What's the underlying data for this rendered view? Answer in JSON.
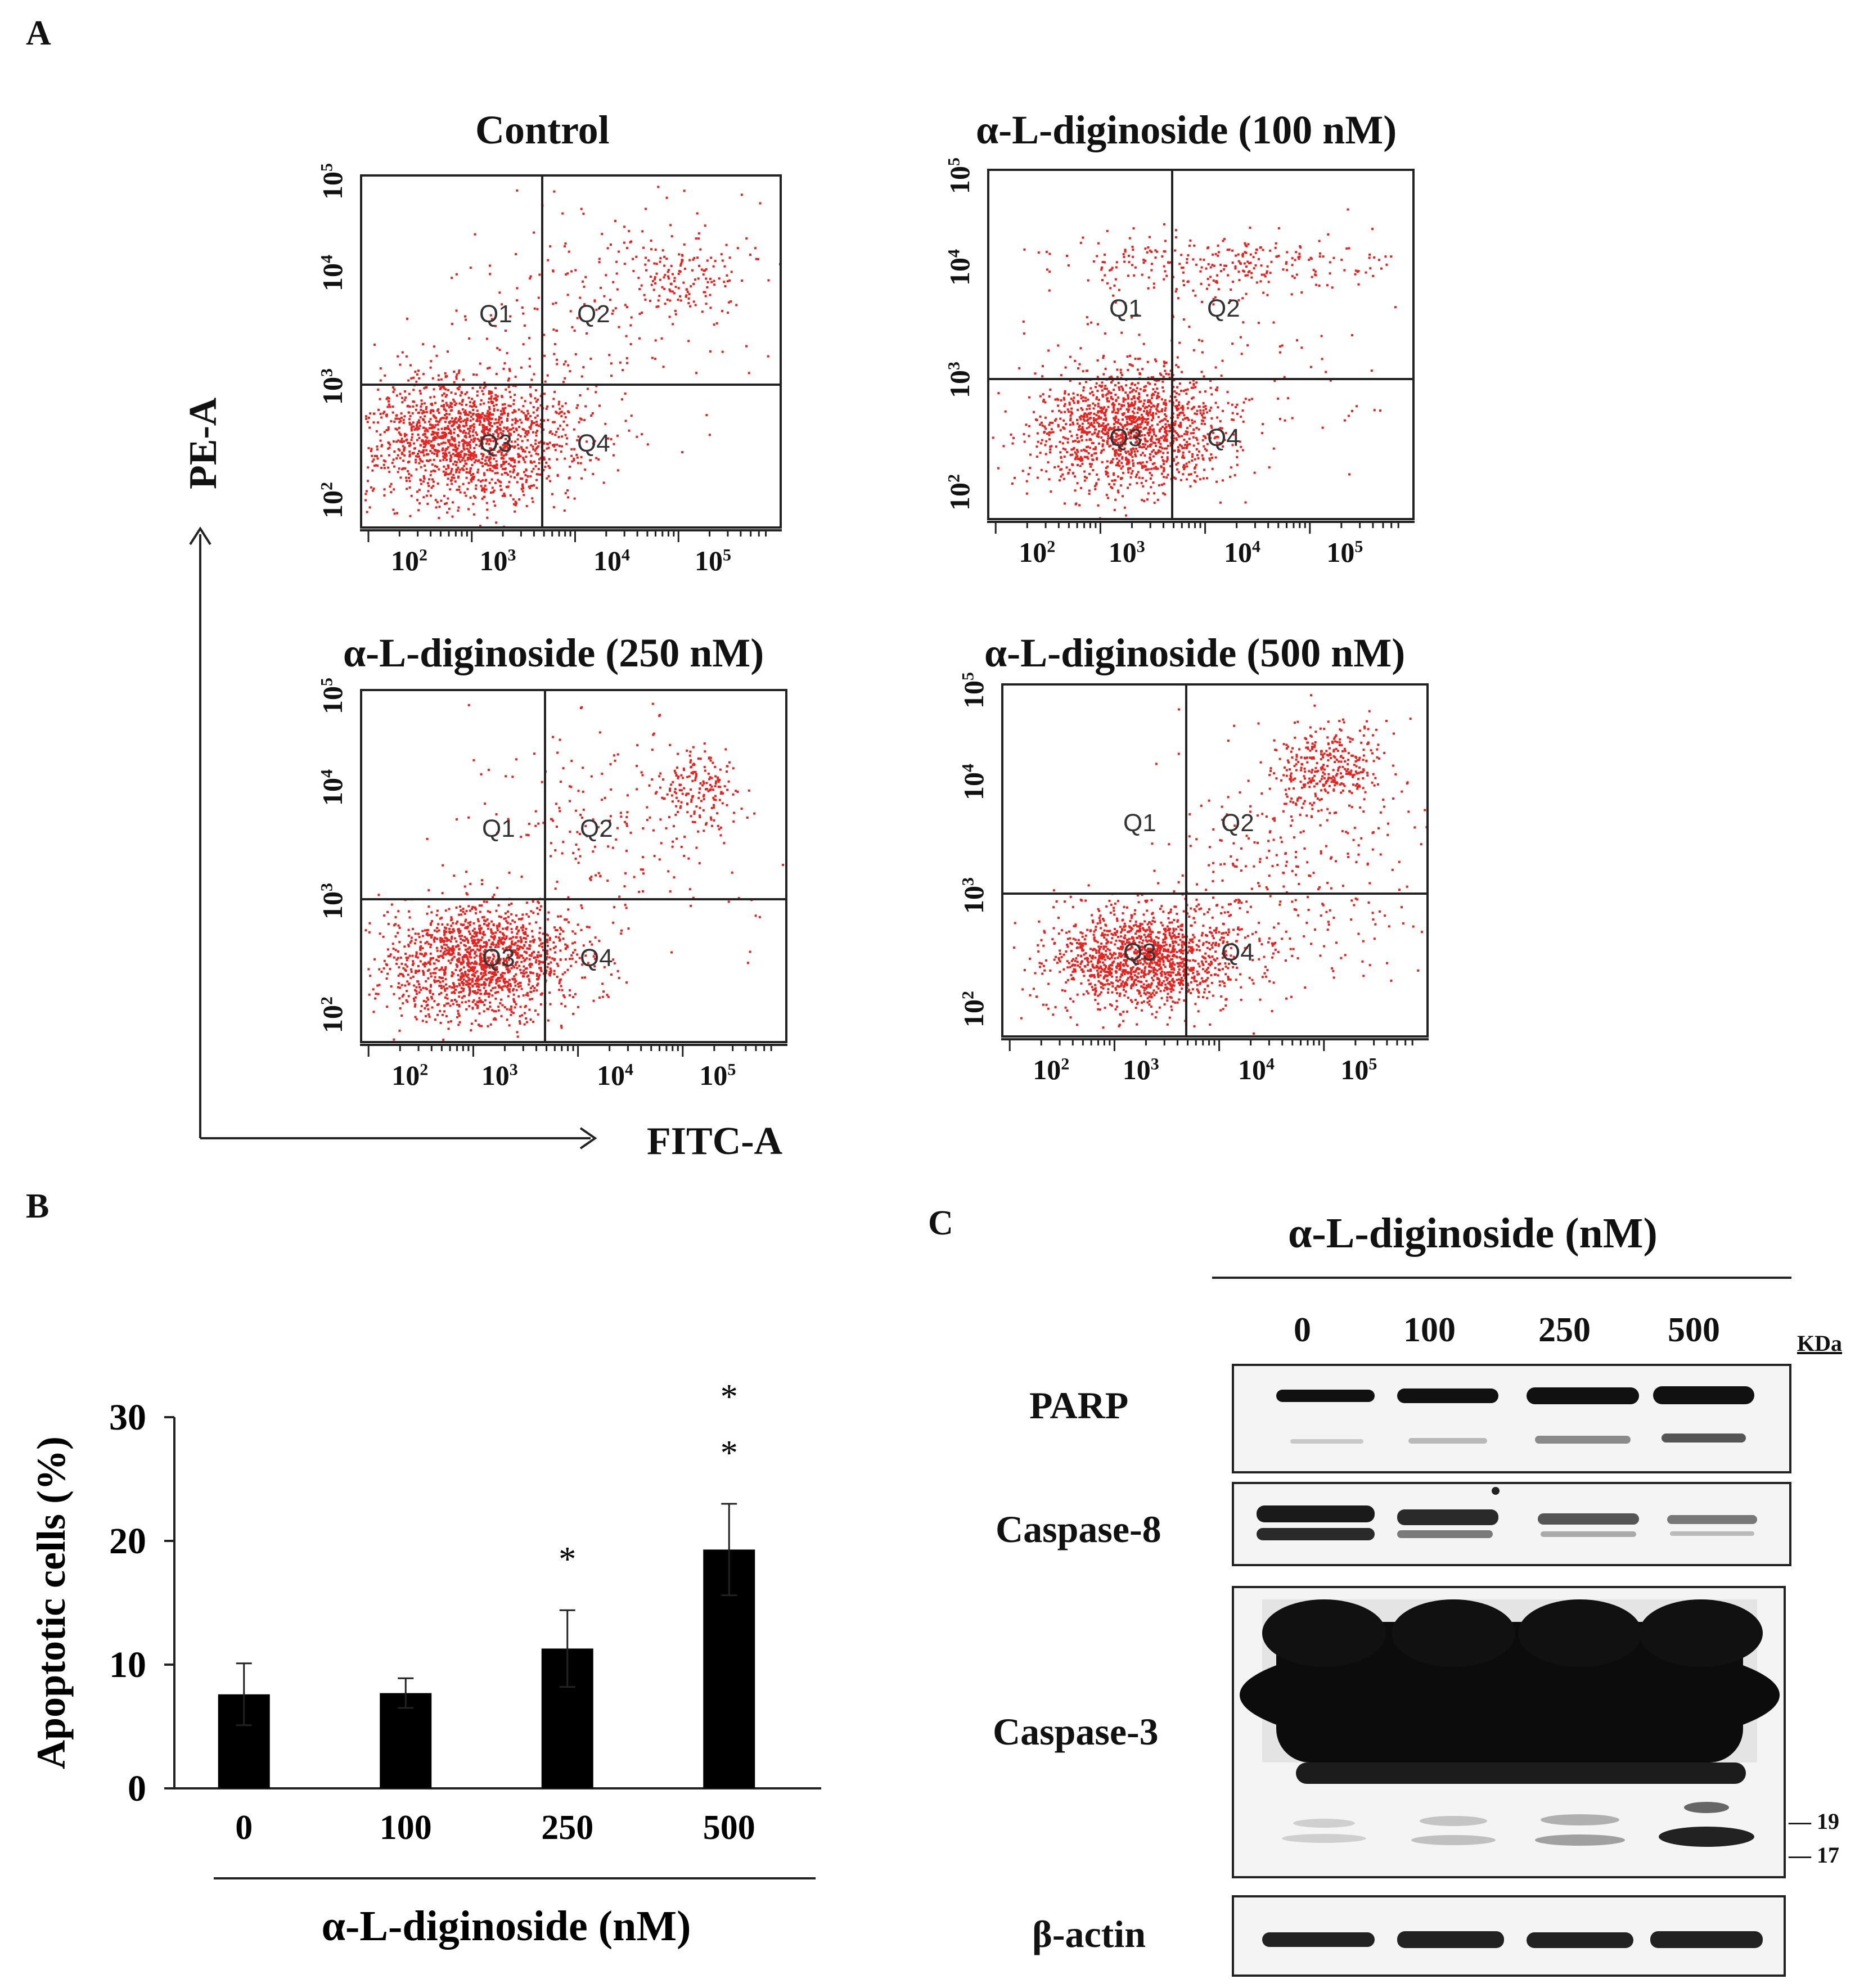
{
  "panels": {
    "a": "A",
    "b": "B",
    "c": "C"
  },
  "flow": {
    "y_axis_label": "PE-A",
    "x_axis_label": "FITC-A",
    "quadrants": [
      "Q1",
      "Q2",
      "Q3",
      "Q4"
    ],
    "tick_labels": [
      "10",
      "10",
      "10",
      "10"
    ],
    "tick_exponents": [
      "2",
      "3",
      "4",
      "5"
    ],
    "plots": [
      {
        "title": "Control"
      },
      {
        "title": "α-L-diginoside (100 nM)"
      },
      {
        "title": "α-L-diginoside (250 nM)"
      },
      {
        "title": "α-L-diginoside (500 nM)"
      }
    ]
  },
  "chart_data": {
    "type": "bar",
    "categories": [
      "0",
      "100",
      "250",
      "500"
    ],
    "values": [
      7.6,
      7.7,
      11.3,
      19.3
    ],
    "errors": [
      2.5,
      1.2,
      3.1,
      3.7
    ],
    "significance": [
      "",
      "",
      "*",
      "* *"
    ],
    "ylabel": "Apoptotic cells (%)",
    "xlabel": "α-L-diginoside (nM)",
    "ylim": [
      0,
      30
    ],
    "yticks": [
      "0",
      "10",
      "20",
      "30"
    ],
    "color": "#000000"
  },
  "western": {
    "title": "α-L-diginoside (nM)",
    "lanes": [
      "0",
      "100",
      "250",
      "500"
    ],
    "unit": "KDa",
    "proteins": [
      "PARP",
      "Caspase-8",
      "Caspase-3",
      "β-actin"
    ],
    "markers": [
      "19",
      "17"
    ]
  }
}
